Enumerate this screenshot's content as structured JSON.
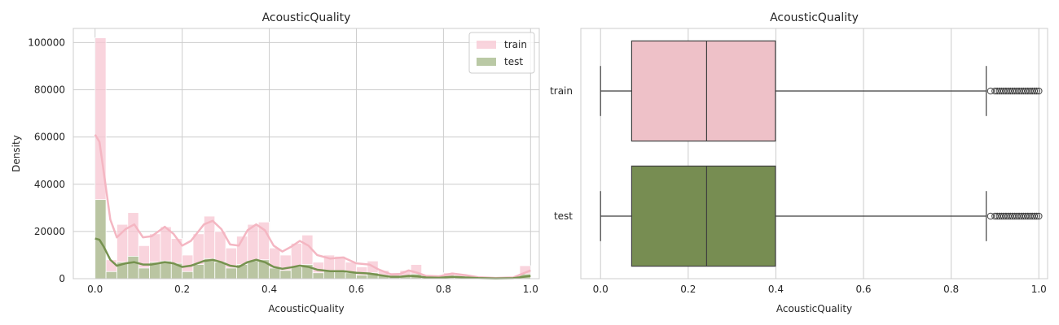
{
  "chart_data": [
    {
      "type": "histogram",
      "title": "AcousticQuality",
      "xlabel": "AcousticQuality",
      "ylabel": "Density",
      "xlim": [
        -0.05,
        1.02
      ],
      "ylim": [
        0,
        106000
      ],
      "xticks": [
        0.0,
        0.2,
        0.4,
        0.6,
        0.8,
        1.0
      ],
      "xtick_labels": [
        "0.0",
        "0.2",
        "0.4",
        "0.6",
        "0.8",
        "1.0"
      ],
      "yticks": [
        0,
        20000,
        40000,
        60000,
        80000,
        100000
      ],
      "ytick_labels": [
        "0",
        "20000",
        "40000",
        "60000",
        "80000",
        "100000"
      ],
      "grid": true,
      "legend_position": "upper-right",
      "bin_edges": [
        0.0,
        0.025,
        0.05,
        0.075,
        0.1,
        0.125,
        0.15,
        0.175,
        0.2,
        0.225,
        0.25,
        0.275,
        0.3,
        0.325,
        0.35,
        0.375,
        0.4,
        0.425,
        0.45,
        0.475,
        0.5,
        0.525,
        0.55,
        0.575,
        0.6,
        0.625,
        0.65,
        0.675,
        0.7,
        0.725,
        0.75,
        0.775,
        0.8,
        0.825,
        0.85,
        0.875,
        0.9,
        0.925,
        0.95,
        0.975,
        1.0
      ],
      "series": [
        {
          "name": "train",
          "color": "#f7c5d2",
          "kde_color": "#f4b6c2",
          "values": [
            102000,
            8000,
            23000,
            28000,
            14000,
            19000,
            22000,
            17000,
            10000,
            19000,
            26500,
            20000,
            13000,
            18000,
            23000,
            24000,
            13000,
            10000,
            15000,
            18500,
            7000,
            10000,
            9500,
            7000,
            5000,
            7500,
            3500,
            2500,
            3500,
            6000,
            1000,
            1000,
            2500,
            1500,
            1000,
            500,
            500,
            300,
            200,
            5500
          ],
          "kde": [
            [
              0.0,
              61000
            ],
            [
              0.01,
              58000
            ],
            [
              0.02,
              45000
            ],
            [
              0.035,
              25000
            ],
            [
              0.05,
              17500
            ],
            [
              0.07,
              21000
            ],
            [
              0.09,
              23000
            ],
            [
              0.11,
              17500
            ],
            [
              0.13,
              18000
            ],
            [
              0.16,
              22000
            ],
            [
              0.18,
              19000
            ],
            [
              0.2,
              14000
            ],
            [
              0.22,
              16000
            ],
            [
              0.25,
              23000
            ],
            [
              0.27,
              24500
            ],
            [
              0.29,
              21000
            ],
            [
              0.31,
              14500
            ],
            [
              0.33,
              14000
            ],
            [
              0.35,
              20500
            ],
            [
              0.37,
              23000
            ],
            [
              0.39,
              20500
            ],
            [
              0.41,
              14000
            ],
            [
              0.43,
              11500
            ],
            [
              0.45,
              13500
            ],
            [
              0.47,
              16000
            ],
            [
              0.49,
              14000
            ],
            [
              0.51,
              10000
            ],
            [
              0.54,
              8500
            ],
            [
              0.57,
              9000
            ],
            [
              0.6,
              6500
            ],
            [
              0.63,
              6000
            ],
            [
              0.65,
              4000
            ],
            [
              0.68,
              1800
            ],
            [
              0.7,
              2000
            ],
            [
              0.72,
              3500
            ],
            [
              0.74,
              2500
            ],
            [
              0.76,
              1200
            ],
            [
              0.79,
              1000
            ],
            [
              0.82,
              2200
            ],
            [
              0.85,
              1500
            ],
            [
              0.88,
              600
            ],
            [
              0.92,
              300
            ],
            [
              0.96,
              500
            ],
            [
              1.0,
              3500
            ]
          ]
        },
        {
          "name": "test",
          "color": "#b2c39b",
          "kde_color": "#76924f",
          "values": [
            33500,
            3000,
            7000,
            9500,
            4500,
            7000,
            7500,
            6500,
            3000,
            6000,
            8500,
            7000,
            4500,
            6000,
            7500,
            8000,
            4500,
            3500,
            5000,
            6000,
            2500,
            3500,
            3500,
            2500,
            1500,
            2500,
            1200,
            800,
            1200,
            2000,
            400,
            400,
            800,
            500,
            300,
            200,
            200,
            100,
            100,
            2000
          ],
          "kde": [
            [
              0.0,
              17000
            ],
            [
              0.01,
              16500
            ],
            [
              0.02,
              13500
            ],
            [
              0.035,
              8000
            ],
            [
              0.05,
              5500
            ],
            [
              0.07,
              6500
            ],
            [
              0.09,
              7000
            ],
            [
              0.11,
              6000
            ],
            [
              0.13,
              6000
            ],
            [
              0.16,
              7000
            ],
            [
              0.18,
              6500
            ],
            [
              0.2,
              5000
            ],
            [
              0.22,
              5500
            ],
            [
              0.25,
              7500
            ],
            [
              0.27,
              8000
            ],
            [
              0.29,
              7000
            ],
            [
              0.31,
              5500
            ],
            [
              0.33,
              5000
            ],
            [
              0.35,
              7000
            ],
            [
              0.37,
              8000
            ],
            [
              0.39,
              7000
            ],
            [
              0.41,
              5000
            ],
            [
              0.43,
              4200
            ],
            [
              0.45,
              4800
            ],
            [
              0.47,
              5500
            ],
            [
              0.49,
              5000
            ],
            [
              0.51,
              3800
            ],
            [
              0.54,
              3200
            ],
            [
              0.57,
              3200
            ],
            [
              0.6,
              2500
            ],
            [
              0.63,
              2200
            ],
            [
              0.65,
              1600
            ],
            [
              0.68,
              800
            ],
            [
              0.7,
              800
            ],
            [
              0.72,
              1200
            ],
            [
              0.74,
              1000
            ],
            [
              0.76,
              500
            ],
            [
              0.79,
              400
            ],
            [
              0.82,
              800
            ],
            [
              0.85,
              500
            ],
            [
              0.88,
              250
            ],
            [
              0.92,
              100
            ],
            [
              0.96,
              200
            ],
            [
              1.0,
              1200
            ]
          ]
        }
      ]
    },
    {
      "type": "box",
      "orientation": "horizontal",
      "title": "AcousticQuality",
      "xlabel": "AcousticQuality",
      "ylabel": "",
      "xlim": [
        -0.045,
        1.02
      ],
      "xticks": [
        0.0,
        0.2,
        0.4,
        0.6,
        0.8,
        1.0
      ],
      "xtick_labels": [
        "0.0",
        "0.2",
        "0.4",
        "0.6",
        "0.8",
        "1.0"
      ],
      "grid": true,
      "categories": [
        "train",
        "test"
      ],
      "series": [
        {
          "name": "train",
          "color": "#eec1c8",
          "whisker_low": 0.0,
          "q1": 0.071,
          "median": 0.242,
          "q3": 0.399,
          "whisker_high": 0.88,
          "outliers": [
            0.89,
            0.9,
            0.905,
            0.91,
            0.915,
            0.92,
            0.925,
            0.93,
            0.935,
            0.94,
            0.945,
            0.95,
            0.955,
            0.96,
            0.965,
            0.97,
            0.975,
            0.98,
            0.985,
            0.99,
            0.995,
            1.0
          ]
        },
        {
          "name": "test",
          "color": "#778d52",
          "whisker_low": 0.0,
          "q1": 0.071,
          "median": 0.242,
          "q3": 0.399,
          "whisker_high": 0.88,
          "outliers": [
            0.89,
            0.9,
            0.905,
            0.91,
            0.915,
            0.92,
            0.925,
            0.93,
            0.935,
            0.94,
            0.945,
            0.95,
            0.955,
            0.96,
            0.965,
            0.97,
            0.975,
            0.98,
            0.985,
            0.99,
            0.995,
            1.0
          ]
        }
      ]
    }
  ]
}
